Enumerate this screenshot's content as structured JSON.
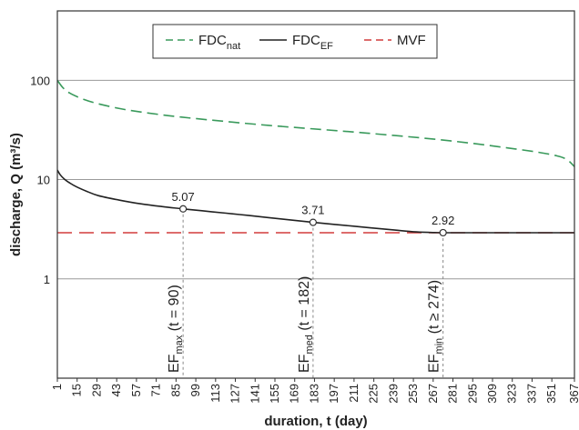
{
  "chart_data": {
    "type": "line",
    "xlabel": "duration, t (day)",
    "ylabel": "discharge, Q  (m³/s)",
    "xlim": [
      1,
      367
    ],
    "ylim": [
      0.1,
      500
    ],
    "y_scale": "log",
    "x_ticks": [
      "1",
      "15",
      "29",
      "43",
      "57",
      "71",
      "85",
      "99",
      "113",
      "127",
      "141",
      "155",
      "169",
      "183",
      "197",
      "211",
      "225",
      "239",
      "253",
      "267",
      "281",
      "295",
      "309",
      "323",
      "337",
      "351",
      "367"
    ],
    "y_ticks": [
      {
        "label": "1",
        "value": 1
      },
      {
        "label": "10",
        "value": 10
      },
      {
        "label": "100",
        "value": 100
      }
    ],
    "grid": "horizontal",
    "legend": {
      "position": "top",
      "entries": [
        {
          "main": "FDC",
          "sub": "nat",
          "color": "#3a9a5c",
          "dash": "dashed"
        },
        {
          "main": "FDC",
          "sub": "EF",
          "color": "#222222",
          "dash": "solid"
        },
        {
          "main": "MVF",
          "sub": "",
          "color": "#d23c3c",
          "dash": "dashed"
        }
      ]
    },
    "series": [
      {
        "name": "FDC_nat",
        "color": "#3a9a5c",
        "dash": "dashed",
        "x": [
          1,
          5,
          10,
          20,
          30,
          45,
          60,
          80,
          100,
          120,
          140,
          160,
          180,
          200,
          220,
          240,
          260,
          280,
          300,
          320,
          340,
          355,
          362,
          367
        ],
        "y": [
          100,
          84,
          74,
          64,
          58,
          52,
          48,
          44,
          41,
          38.5,
          36.2,
          34.3,
          32.6,
          31,
          29.4,
          27.8,
          26.2,
          24.5,
          22.7,
          20.8,
          19,
          17.3,
          15.8,
          13.5
        ]
      },
      {
        "name": "FDC_EF",
        "color": "#222222",
        "dash": "solid",
        "x": [
          1,
          3,
          6,
          10,
          15,
          22,
          30,
          45,
          60,
          75,
          90,
          110,
          130,
          150,
          182,
          210,
          240,
          255,
          268,
          274,
          300,
          330,
          367
        ],
        "y": [
          12.5,
          11.2,
          10.1,
          9.2,
          8.4,
          7.6,
          6.9,
          6.2,
          5.7,
          5.35,
          5.07,
          4.75,
          4.45,
          4.15,
          3.71,
          3.4,
          3.1,
          2.97,
          2.93,
          2.92,
          2.92,
          2.92,
          2.92
        ]
      },
      {
        "name": "MVF",
        "color": "#d23c3c",
        "dash": "dashed",
        "x": [
          1,
          367
        ],
        "y": [
          2.92,
          2.92
        ]
      }
    ],
    "annotations": [
      {
        "label": "5.07",
        "x": 90,
        "y": 5.07,
        "main": "EF",
        "sub": "max",
        "tail": "(t = 90)"
      },
      {
        "label": "3.71",
        "x": 182,
        "y": 3.71,
        "main": "EF",
        "sub": "med",
        "tail": "(t = 182)"
      },
      {
        "label": "2.92",
        "x": 274,
        "y": 2.92,
        "main": "EF",
        "sub": "min",
        "tail": "(t ≥ 274)"
      }
    ]
  }
}
